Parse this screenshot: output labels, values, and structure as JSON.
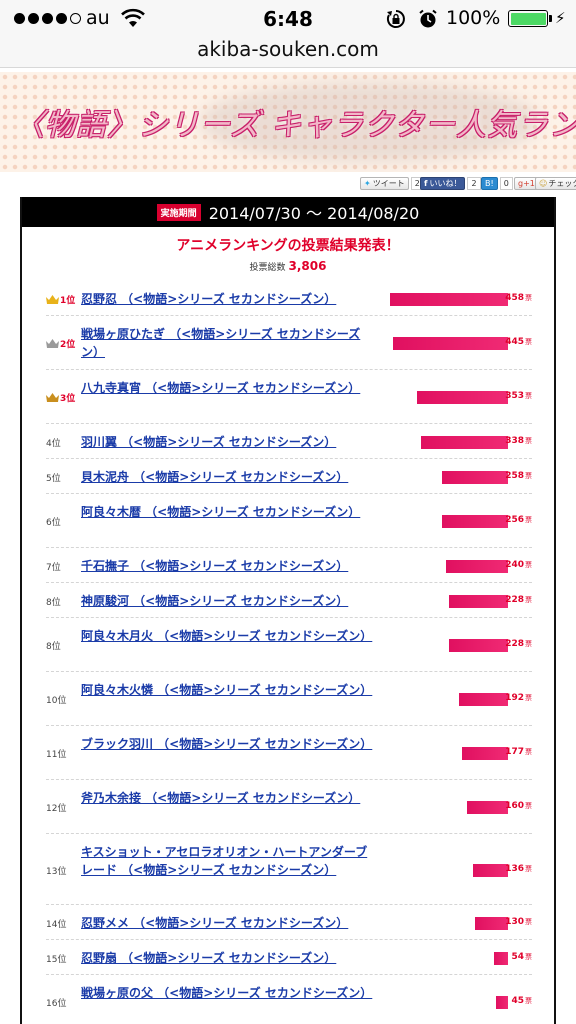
{
  "status": {
    "carrier": "au",
    "time": "6:48",
    "battery": "100%",
    "colors": {
      "battery": "#4cd964"
    }
  },
  "browser": {
    "url": "akiba-souken.com"
  },
  "banner": {
    "title": "〈物語〉シリーズ キャラクター人気ランキング"
  },
  "social": {
    "tweet": "ツイート",
    "tweet_count": "25",
    "like": "いいね！",
    "like_count": "2",
    "hatena": "B!",
    "hatena_count": "0",
    "gplus": "g+1",
    "gplus_count": "0",
    "check": "チェック"
  },
  "period": {
    "label": "実施期間",
    "range": "2014/07/30 〜 2014/08/20"
  },
  "results": {
    "title": "アニメランキングの投票結果発表！",
    "total_label": "投票総数",
    "total": "3,806",
    "unit": "票"
  },
  "max_votes": 458,
  "rankings": [
    {
      "rank": "1位",
      "name": "忍野忍 （<物語>シリーズ セカンドシーズン）",
      "votes": 458,
      "crown": "gold"
    },
    {
      "rank": "2位",
      "name": "戦場ヶ原ひたぎ （<物語>シリーズ セカンドシーズン）",
      "votes": 445,
      "crown": "silver"
    },
    {
      "rank": "3位",
      "name": "八九寺真宵 （<物語>シリーズ セカンドシーズン）",
      "votes": 353,
      "crown": "bronze"
    },
    {
      "rank": "4位",
      "name": "羽川翼 （<物語>シリーズ セカンドシーズン）",
      "votes": 338
    },
    {
      "rank": "5位",
      "name": "貝木泥舟 （<物語>シリーズ セカンドシーズン）",
      "votes": 258
    },
    {
      "rank": "6位",
      "name": "阿良々木暦 （<物語>シリーズ セカンドシーズン）",
      "votes": 256
    },
    {
      "rank": "7位",
      "name": "千石撫子 （<物語>シリーズ セカンドシーズン）",
      "votes": 240
    },
    {
      "rank": "8位",
      "name": "神原駿河 （<物語>シリーズ セカンドシーズン）",
      "votes": 228
    },
    {
      "rank": "8位",
      "name": "阿良々木月火 （<物語>シリーズ セカンドシーズン）",
      "votes": 228
    },
    {
      "rank": "10位",
      "name": "阿良々木火憐 （<物語>シリーズ セカンドシーズン）",
      "votes": 192
    },
    {
      "rank": "11位",
      "name": "ブラック羽川 （<物語>シリーズ セカンドシーズン）",
      "votes": 177
    },
    {
      "rank": "12位",
      "name": "斧乃木余接 （<物語>シリーズ セカンドシーズン）",
      "votes": 160
    },
    {
      "rank": "13位",
      "name": "キスショット・アセロラオリオン・ハートアンダーブレード （<物語>シリーズ セカンドシーズン）",
      "votes": 136
    },
    {
      "rank": "14位",
      "name": "忍野メメ （<物語>シリーズ セカンドシーズン）",
      "votes": 130
    },
    {
      "rank": "15位",
      "name": "忍野扇 （<物語>シリーズ セカンドシーズン）",
      "votes": 54
    },
    {
      "rank": "16位",
      "name": "戦場ヶ原の父 （<物語>シリーズ セカンドシーズン）",
      "votes": 45
    }
  ]
}
